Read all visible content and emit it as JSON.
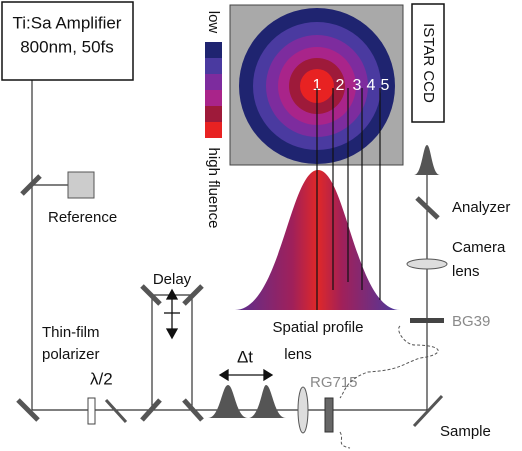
{
  "amplifier": {
    "lines": [
      "Ti:Sa Amplifier",
      "800nm, 50fs"
    ]
  },
  "labels": {
    "reference": "Reference",
    "delay": "Delay",
    "polarizer": [
      "Thin-film",
      "polarizer"
    ],
    "halfwave": "λ/2",
    "delta_t": "Δt",
    "lens": "lens",
    "rg715": "RG715",
    "spatial_profile": "Spatial profile",
    "bg39": "BG39",
    "camera_lens": [
      "Camera",
      "lens"
    ],
    "analyzer": "Analyzer",
    "sample": "Sample",
    "ccd": "ISTAR CCD"
  },
  "legend": {
    "low": "low",
    "high": "high fluence"
  },
  "rings": [
    "1",
    "2",
    "3",
    "4",
    "5"
  ]
}
